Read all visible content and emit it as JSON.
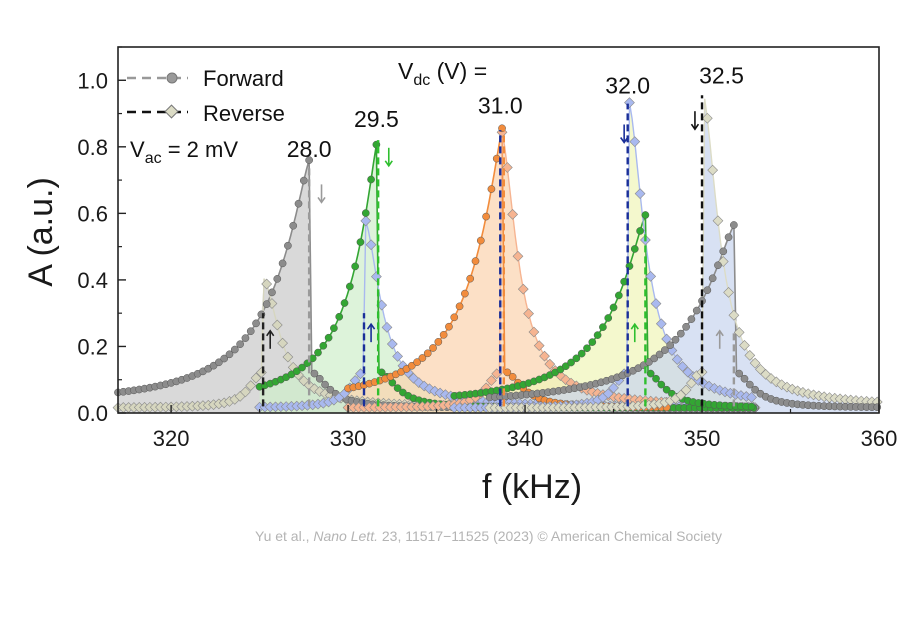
{
  "chart_data": {
    "type": "line",
    "xlabel": "f (kHz)",
    "ylabel": "A (a.u.)",
    "xlim": [
      317,
      360
    ],
    "ylim": [
      0,
      1.1
    ],
    "xticks": [
      320,
      330,
      340,
      350,
      360
    ],
    "yticks": [
      0.0,
      0.2,
      0.4,
      0.6,
      0.8,
      1.0
    ],
    "ytick_labels": [
      "0.0",
      "0.2",
      "0.4",
      "0.6",
      "0.8",
      "1.0"
    ],
    "legend": {
      "position": "top-left",
      "forward": "Forward",
      "reverse": "Reverse",
      "vac_main": "V",
      "vac_sub": "ac",
      "vac_rest": " = 2 mV"
    },
    "vdc_header": {
      "main": "V",
      "sub": "dc",
      "rest": " (V) ="
    },
    "series": [
      {
        "vdc_label": "28.0",
        "fill": "#c9c9c9",
        "forward_color": "#8c8c8c",
        "reverse_color": "#d6d6bf",
        "f0": 317.0,
        "peak_forward": 327.8,
        "amp_forward": 0.745,
        "jump_reverse": 325.2,
        "amp_reverse_jump": 0.39,
        "f_start": 317,
        "f_end": 353
      },
      {
        "vdc_label": "29.5",
        "fill": "#cfeecb",
        "forward_color": "#33a633",
        "reverse_color": "#a9b9ef",
        "peak_forward": 331.7,
        "amp_forward": 0.82,
        "jump_reverse": 330.9,
        "amp_reverse_jump": 0.57,
        "f_start": 325,
        "f_end": 353
      },
      {
        "vdc_label": "31.0",
        "fill": "#fbd3ae",
        "forward_color": "#f28c3c",
        "reverse_color": "#f6b491",
        "peak_forward": 338.8,
        "amp_forward": 0.865,
        "jump_reverse": 338.6,
        "amp_reverse_jump": 0.84,
        "f_start": 330,
        "f_end": 348
      },
      {
        "vdc_label": "32.0",
        "fill": "#f0f5b8",
        "forward_color": "#33a633",
        "reverse_color": "#a9b9ef",
        "peak_forward": 346.8,
        "amp_forward": 0.58,
        "jump_reverse": 345.8,
        "amp_reverse_jump": 0.93,
        "f_start": 336,
        "f_end": 353
      },
      {
        "vdc_label": "32.5",
        "fill": "#c7d4ee",
        "forward_color": "#8c8c8c",
        "reverse_color": "#dcdcc6",
        "peak_forward": 351.8,
        "amp_forward": 0.55,
        "jump_reverse": 350.0,
        "amp_reverse_jump": 0.955,
        "f_start": 338,
        "f_end": 360
      }
    ],
    "jump_lines": [
      {
        "x": 327.8,
        "y_top": 0.745,
        "color": "#9a9a9a",
        "dash": "forward"
      },
      {
        "x": 325.2,
        "y_top": 0.3,
        "color": "#222222",
        "dash": "reverse"
      },
      {
        "x": 331.7,
        "y_top": 0.82,
        "color": "#2fbf2f",
        "dash": "forward"
      },
      {
        "x": 330.9,
        "y_top": 0.3,
        "color": "#1a2f99",
        "dash": "reverse"
      },
      {
        "x": 338.8,
        "y_top": 0.85,
        "color": "#f28c3c",
        "dash": "forward"
      },
      {
        "x": 338.6,
        "y_top": 0.85,
        "color": "#1a2f99",
        "dash": "reverse"
      },
      {
        "x": 346.8,
        "y_top": 0.55,
        "color": "#2fbf2f",
        "dash": "forward"
      },
      {
        "x": 345.8,
        "y_top": 0.93,
        "color": "#1a2f99",
        "dash": "reverse"
      },
      {
        "x": 351.8,
        "y_top": 0.25,
        "color": "#9a9a9a",
        "dash": "forward"
      },
      {
        "x": 350.0,
        "y_top": 0.955,
        "color": "#111111",
        "dash": "reverse"
      }
    ],
    "arrows": [
      {
        "x": 328.5,
        "y": 0.66,
        "dir": "down",
        "color": "#9a9a9a"
      },
      {
        "x": 325.6,
        "y": 0.22,
        "dir": "up",
        "color": "#222222"
      },
      {
        "x": 332.3,
        "y": 0.77,
        "dir": "down",
        "color": "#2fbf2f"
      },
      {
        "x": 331.3,
        "y": 0.24,
        "dir": "up",
        "color": "#1a2f99"
      },
      {
        "x": 345.6,
        "y": 0.84,
        "dir": "down",
        "color": "#1a2f99"
      },
      {
        "x": 346.2,
        "y": 0.24,
        "dir": "up",
        "color": "#2fbf2f"
      },
      {
        "x": 349.6,
        "y": 0.88,
        "dir": "down",
        "color": "#111111"
      },
      {
        "x": 351.0,
        "y": 0.22,
        "dir": "up",
        "color": "#9a9a9a"
      }
    ],
    "label_positions": [
      {
        "x": 327.8,
        "y": 0.77
      },
      {
        "x": 331.6,
        "y": 0.86
      },
      {
        "x": 338.6,
        "y": 0.9
      },
      {
        "x": 345.8,
        "y": 0.96
      },
      {
        "x": 351.1,
        "y": 0.99
      }
    ]
  },
  "credit": {
    "authors": "Yu et al., ",
    "journal": "Nano Lett.",
    "details": " 23, 11517−11525 (2023) © American Chemical Society"
  }
}
